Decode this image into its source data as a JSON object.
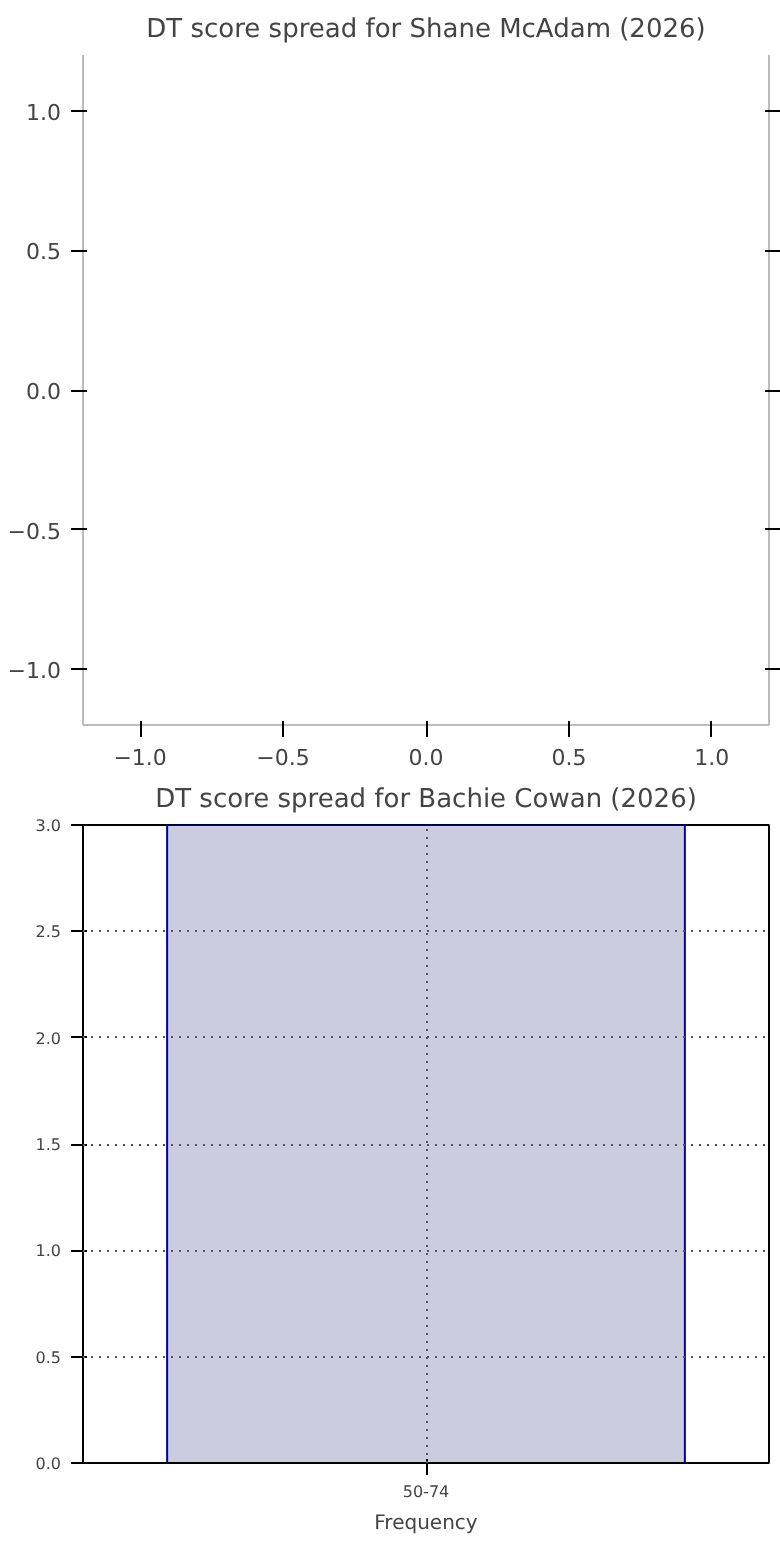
{
  "chart_data": [
    {
      "type": "scatter",
      "title": "DT score spread for Shane McAdam (2026)",
      "xlim": [
        -1.2,
        1.2
      ],
      "ylim": [
        -1.2,
        1.2
      ],
      "xticks": [
        {
          "value": -1,
          "label": "−1.0"
        },
        {
          "value": -0.5,
          "label": "−0.5"
        },
        {
          "value": 0,
          "label": "0.0"
        },
        {
          "value": 0.5,
          "label": "0.5"
        },
        {
          "value": 1,
          "label": "1.0"
        }
      ],
      "yticks": [
        {
          "value": -1,
          "label": "−1.0"
        },
        {
          "value": -0.5,
          "label": "−0.5"
        },
        {
          "value": 0,
          "label": "0.0"
        },
        {
          "value": 0.5,
          "label": "0.5"
        },
        {
          "value": 1,
          "label": "1.0"
        }
      ],
      "grid": false
    },
    {
      "type": "bar",
      "title": "DT score spread for Bachie Cowan (2026)",
      "categories": [
        "50-74"
      ],
      "values": [
        3
      ],
      "color": "#ccccdf",
      "xlabel": "Frequency",
      "ylim": [
        0,
        3
      ],
      "yticks": [
        {
          "value": 0,
          "label": "0.0"
        },
        {
          "value": 0.5,
          "label": "0.5"
        },
        {
          "value": 1,
          "label": "1.0"
        },
        {
          "value": 1.5,
          "label": "1.5"
        },
        {
          "value": 2,
          "label": "2.0"
        },
        {
          "value": 2.5,
          "label": "2.5"
        },
        {
          "value": 3,
          "label": "3.0"
        }
      ],
      "grid": true
    }
  ]
}
